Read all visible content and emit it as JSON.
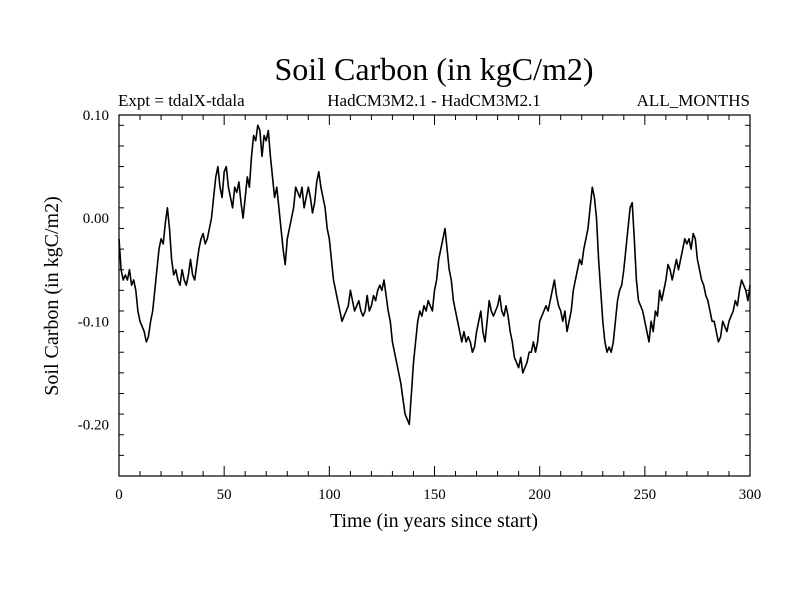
{
  "chart_data": {
    "type": "line",
    "title": "Soil Carbon (in kgC/m2)",
    "subtitle_left": "Expt = tdalX-tdala",
    "subtitle_center": "HadCM3M2.1 - HadCM3M2.1",
    "subtitle_right": "ALL_MONTHS",
    "xlabel": "Time (in years since start)",
    "ylabel": "Soil Carbon (in kgC/m2)",
    "xlim": [
      0,
      300
    ],
    "ylim": [
      -0.25,
      0.1
    ],
    "x_ticks": [
      0,
      50,
      100,
      150,
      200,
      250,
      300
    ],
    "x_tick_labels": [
      "0",
      "50",
      "100",
      "150",
      "200",
      "250",
      "300"
    ],
    "y_ticks": [
      0.1,
      0.0,
      -0.1,
      -0.2
    ],
    "y_tick_labels": [
      "0.10",
      "0.00",
      "-0.10",
      "-0.20"
    ],
    "grid": false,
    "line_color": "#000000",
    "series": [
      {
        "x": [
          0,
          1,
          2,
          3,
          4,
          5,
          6,
          7,
          8,
          9,
          10,
          11,
          12,
          13,
          14,
          15,
          16,
          17,
          18,
          19,
          20,
          21,
          22,
          23,
          24,
          25,
          26,
          27,
          28,
          29,
          30,
          31,
          32,
          33,
          34,
          35,
          36,
          37,
          38,
          39,
          40,
          41,
          42,
          43,
          44,
          45,
          46,
          47,
          48,
          49,
          50,
          51,
          52,
          53,
          54,
          55,
          56,
          57,
          58,
          59,
          60,
          61,
          62,
          63,
          64,
          65,
          66,
          67,
          68,
          69,
          70,
          71,
          72,
          73,
          74,
          75,
          76,
          77,
          78,
          79,
          80,
          81,
          82,
          83,
          84,
          85,
          86,
          87,
          88,
          89,
          90,
          91,
          92,
          93,
          94,
          95,
          96,
          97,
          98,
          99,
          100,
          101,
          102,
          103,
          104,
          105,
          106,
          107,
          108,
          109,
          110,
          111,
          112,
          113,
          114,
          115,
          116,
          117,
          118,
          119,
          120,
          121,
          122,
          123,
          124,
          125,
          126,
          127,
          128,
          129,
          130,
          131,
          132,
          133,
          134,
          135,
          136,
          137,
          138,
          139,
          140,
          141,
          142,
          143,
          144,
          145,
          146,
          147,
          148,
          149,
          150,
          151,
          152,
          153,
          154,
          155,
          156,
          157,
          158,
          159,
          160,
          161,
          162,
          163,
          164,
          165,
          166,
          167,
          168,
          169,
          170,
          171,
          172,
          173,
          174,
          175,
          176,
          177,
          178,
          179,
          180,
          181,
          182,
          183,
          184,
          185,
          186,
          187,
          188,
          189,
          190,
          191,
          192,
          193,
          194,
          195,
          196,
          197,
          198,
          199,
          200,
          201,
          202,
          203,
          204,
          205,
          206,
          207,
          208,
          209,
          210,
          211,
          212,
          213,
          214,
          215,
          216,
          217,
          218,
          219,
          220,
          221,
          222,
          223,
          224,
          225,
          226,
          227,
          228,
          229,
          230,
          231,
          232,
          233,
          234,
          235,
          236,
          237,
          238,
          239,
          240,
          241,
          242,
          243,
          244,
          245,
          246,
          247,
          248,
          249,
          250,
          251,
          252,
          253,
          254,
          255,
          256,
          257,
          258,
          259,
          260,
          261,
          262,
          263,
          264,
          265,
          266,
          267,
          268,
          269,
          270,
          271,
          272,
          273,
          274,
          275,
          276,
          277,
          278,
          279,
          280,
          281,
          282,
          283,
          284,
          285,
          286,
          287,
          288,
          289,
          290,
          291,
          292,
          293,
          294,
          295,
          296,
          297,
          298,
          299,
          300
        ],
        "y": [
          -0.02,
          -0.05,
          -0.06,
          -0.055,
          -0.06,
          -0.05,
          -0.065,
          -0.06,
          -0.07,
          -0.09,
          -0.1,
          -0.105,
          -0.11,
          -0.12,
          -0.115,
          -0.1,
          -0.09,
          -0.07,
          -0.05,
          -0.03,
          -0.02,
          -0.025,
          -0.005,
          0.01,
          -0.01,
          -0.04,
          -0.055,
          -0.05,
          -0.06,
          -0.065,
          -0.05,
          -0.06,
          -0.065,
          -0.055,
          -0.04,
          -0.055,
          -0.06,
          -0.045,
          -0.03,
          -0.02,
          -0.015,
          -0.025,
          -0.02,
          -0.01,
          0.0,
          0.02,
          0.04,
          0.05,
          0.03,
          0.02,
          0.045,
          0.05,
          0.03,
          0.02,
          0.01,
          0.03,
          0.025,
          0.035,
          0.015,
          0.0,
          0.02,
          0.04,
          0.03,
          0.06,
          0.08,
          0.075,
          0.09,
          0.085,
          0.06,
          0.08,
          0.075,
          0.085,
          0.06,
          0.04,
          0.02,
          0.03,
          0.01,
          -0.01,
          -0.03,
          -0.045,
          -0.02,
          -0.01,
          0.0,
          0.01,
          0.03,
          0.025,
          0.02,
          0.03,
          0.01,
          0.02,
          0.03,
          0.02,
          0.005,
          0.015,
          0.035,
          0.045,
          0.03,
          0.02,
          0.01,
          -0.01,
          -0.02,
          -0.04,
          -0.06,
          -0.07,
          -0.08,
          -0.09,
          -0.1,
          -0.095,
          -0.09,
          -0.085,
          -0.07,
          -0.08,
          -0.09,
          -0.085,
          -0.08,
          -0.09,
          -0.095,
          -0.09,
          -0.075,
          -0.09,
          -0.085,
          -0.075,
          -0.08,
          -0.07,
          -0.065,
          -0.07,
          -0.06,
          -0.075,
          -0.09,
          -0.1,
          -0.12,
          -0.13,
          -0.14,
          -0.15,
          -0.16,
          -0.175,
          -0.19,
          -0.195,
          -0.2,
          -0.17,
          -0.14,
          -0.12,
          -0.1,
          -0.09,
          -0.095,
          -0.085,
          -0.09,
          -0.08,
          -0.085,
          -0.09,
          -0.07,
          -0.06,
          -0.04,
          -0.03,
          -0.02,
          -0.01,
          -0.03,
          -0.05,
          -0.06,
          -0.08,
          -0.09,
          -0.1,
          -0.11,
          -0.12,
          -0.11,
          -0.12,
          -0.115,
          -0.12,
          -0.13,
          -0.125,
          -0.11,
          -0.1,
          -0.09,
          -0.11,
          -0.12,
          -0.1,
          -0.08,
          -0.09,
          -0.095,
          -0.09,
          -0.085,
          -0.075,
          -0.09,
          -0.095,
          -0.085,
          -0.095,
          -0.11,
          -0.12,
          -0.135,
          -0.14,
          -0.145,
          -0.135,
          -0.15,
          -0.145,
          -0.14,
          -0.13,
          -0.13,
          -0.12,
          -0.13,
          -0.12,
          -0.1,
          -0.095,
          -0.09,
          -0.085,
          -0.09,
          -0.08,
          -0.07,
          -0.06,
          -0.075,
          -0.085,
          -0.09,
          -0.1,
          -0.09,
          -0.11,
          -0.1,
          -0.09,
          -0.07,
          -0.06,
          -0.05,
          -0.04,
          -0.045,
          -0.03,
          -0.02,
          -0.01,
          0.01,
          0.03,
          0.02,
          0.0,
          -0.04,
          -0.07,
          -0.1,
          -0.12,
          -0.13,
          -0.125,
          -0.13,
          -0.12,
          -0.1,
          -0.08,
          -0.07,
          -0.065,
          -0.05,
          -0.03,
          -0.01,
          0.01,
          0.015,
          -0.02,
          -0.06,
          -0.08,
          -0.085,
          -0.09,
          -0.1,
          -0.11,
          -0.12,
          -0.1,
          -0.11,
          -0.09,
          -0.095,
          -0.07,
          -0.08,
          -0.07,
          -0.06,
          -0.045,
          -0.05,
          -0.06,
          -0.05,
          -0.04,
          -0.05,
          -0.04,
          -0.03,
          -0.02,
          -0.025,
          -0.02,
          -0.03,
          -0.015,
          -0.02,
          -0.04,
          -0.05,
          -0.06,
          -0.065,
          -0.075,
          -0.08,
          -0.09,
          -0.1,
          -0.1,
          -0.11,
          -0.12,
          -0.115,
          -0.1,
          -0.105,
          -0.11,
          -0.1,
          -0.095,
          -0.09,
          -0.08,
          -0.085,
          -0.07,
          -0.06,
          -0.065,
          -0.07,
          -0.08,
          -0.065
        ]
      }
    ]
  }
}
